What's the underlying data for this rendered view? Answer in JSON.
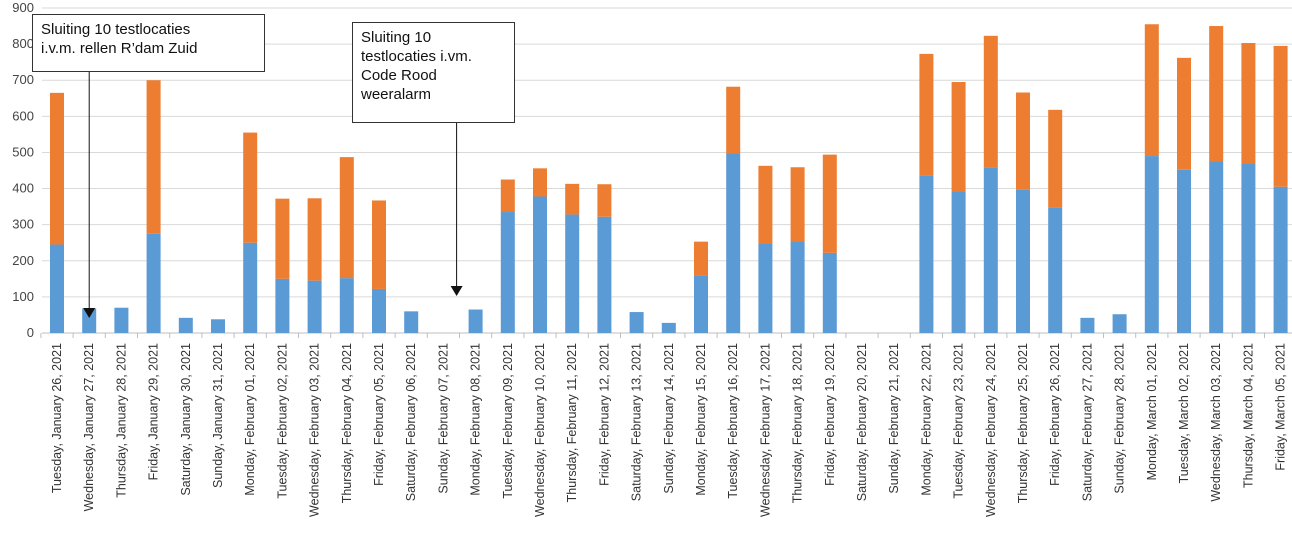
{
  "chart_data": {
    "type": "bar",
    "stacked": true,
    "title": "",
    "xlabel": "",
    "ylabel": "",
    "ylim": [
      0,
      900
    ],
    "yticks": [
      0,
      100,
      200,
      300,
      400,
      500,
      600,
      700,
      800,
      900
    ],
    "grid": true,
    "legend": "none",
    "colors": {
      "bottom": "#5B9BD5",
      "top": "#ED7D31"
    },
    "categories": [
      "Tuesday, January 26, 2021",
      "Wednesday, January 27, 2021",
      "Thursday, January 28, 2021",
      "Friday, January 29, 2021",
      "Saturday, January 30, 2021",
      "Sunday, January 31, 2021",
      "Monday, February 01, 2021",
      "Tuesday, February 02, 2021",
      "Wednesday, February 03, 2021",
      "Thursday, February 04, 2021",
      "Friday, February 05, 2021",
      "Saturday, February 06, 2021",
      "Sunday, February 07, 2021",
      "Monday, February 08, 2021",
      "Tuesday, February 09, 2021",
      "Wednesday, February 10, 2021",
      "Thursday, February 11, 2021",
      "Friday, February 12, 2021",
      "Saturday, February 13, 2021",
      "Sunday, February 14, 2021",
      "Monday, February 15, 2021",
      "Tuesday, February 16, 2021",
      "Wednesday, February 17, 2021",
      "Thursday, February 18, 2021",
      "Friday, February 19, 2021",
      "Saturday, February 20, 2021",
      "Sunday, February 21, 2021",
      "Monday, February 22, 2021",
      "Tuesday, February 23, 2021",
      "Wednesday, February 24, 2021",
      "Thursday, February 25, 2021",
      "Friday, February 26, 2021",
      "Saturday, February 27, 2021",
      "Sunday, February 28, 2021",
      "Monday, March 01, 2021",
      "Tuesday, March 02, 2021",
      "Wednesday, March 03, 2021",
      "Thursday, March 04, 2021",
      "Friday, March 05, 2021"
    ],
    "series": [
      {
        "values": [
          245,
          68,
          70,
          275,
          42,
          38,
          250,
          150,
          145,
          152,
          122,
          60,
          0,
          65,
          335,
          378,
          328,
          322,
          58,
          28,
          158,
          497,
          248,
          252,
          222,
          0,
          0,
          435,
          392,
          458,
          398,
          348,
          42,
          52,
          490,
          452,
          475,
          468,
          405
        ]
      },
      {
        "values": [
          420,
          0,
          0,
          425,
          0,
          0,
          305,
          222,
          228,
          335,
          245,
          0,
          0,
          0,
          90,
          78,
          85,
          90,
          0,
          0,
          95,
          185,
          215,
          207,
          272,
          0,
          0,
          338,
          303,
          365,
          268,
          270,
          0,
          0,
          365,
          310,
          375,
          335,
          390
        ]
      }
    ],
    "annotations": [
      {
        "text": "Sluiting 10 testlocaties\ni.v.m. rellen R’dam Zuid",
        "category": "Wednesday, January 27, 2021"
      },
      {
        "text": "Sluiting 10\ntestlocaties i.vm.\nCode Rood\nweeralarm",
        "category": "Monday, February 08, 2021"
      }
    ]
  }
}
